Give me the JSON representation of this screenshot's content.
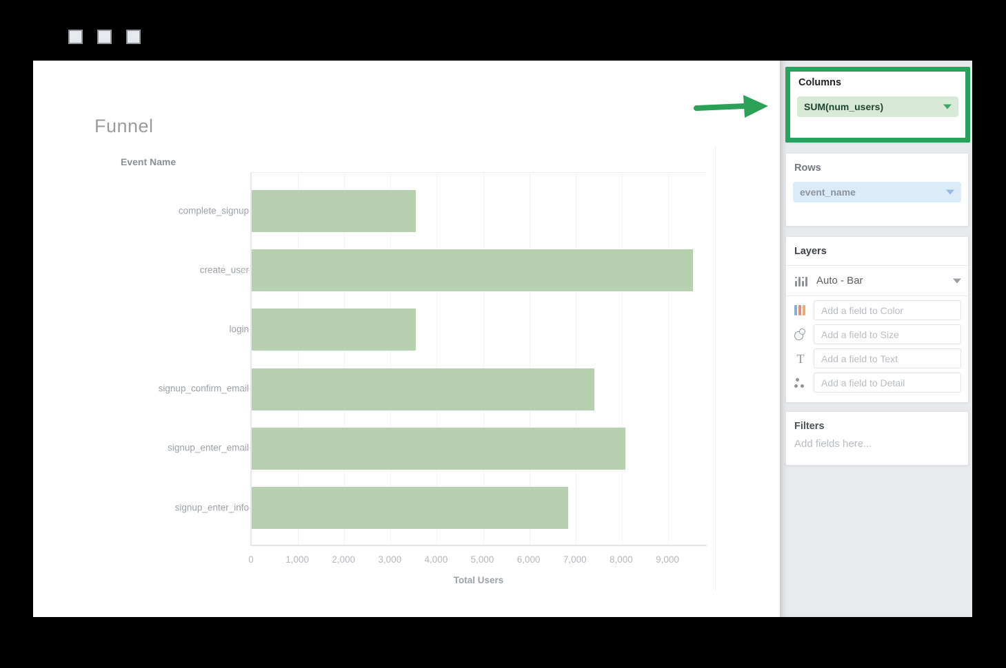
{
  "window": {
    "controls": [
      "window-button-1",
      "window-button-2",
      "window-button-3"
    ]
  },
  "chart": {
    "title": "Funnel",
    "y_axis_title": "Event Name",
    "x_axis_title": "Total Users",
    "bar_color": "#b7d1b0",
    "x_ticks": [
      0,
      1000,
      2000,
      3000,
      4000,
      5000,
      6000,
      7000,
      8000,
      9000
    ],
    "x_tick_labels": [
      "0",
      "1,000",
      "2,000",
      "3,000",
      "4,000",
      "5,000",
      "6,000",
      "7,000",
      "8,000",
      "9,000"
    ]
  },
  "chart_data": {
    "type": "bar",
    "orientation": "horizontal",
    "title": "Funnel",
    "xlabel": "Total Users",
    "ylabel": "Event Name",
    "categories": [
      "complete_signup",
      "create_user",
      "login",
      "signup_confirm_email",
      "signup_enter_email",
      "signup_enter_info"
    ],
    "values": [
      3540,
      9540,
      3540,
      7410,
      8080,
      6840
    ],
    "xlim": [
      0,
      9900
    ],
    "grid": true,
    "legend": false
  },
  "sidebar": {
    "columns": {
      "title": "Columns",
      "pill": "SUM(num_users)",
      "highlight_color": "#28a25c"
    },
    "rows": {
      "title": "Rows",
      "pill": "event_name"
    },
    "layers": {
      "title": "Layers",
      "mark_type": "Auto - Bar",
      "fields": [
        {
          "icon": "color-bars-icon",
          "placeholder": "Add a field to Color"
        },
        {
          "icon": "size-circles-icon",
          "placeholder": "Add a field to Size"
        },
        {
          "icon": "text-icon",
          "placeholder": "Add a field to Text"
        },
        {
          "icon": "detail-dots-icon",
          "placeholder": "Add a field to Detail"
        }
      ]
    },
    "filters": {
      "title": "Filters",
      "placeholder": "Add fields here..."
    }
  }
}
